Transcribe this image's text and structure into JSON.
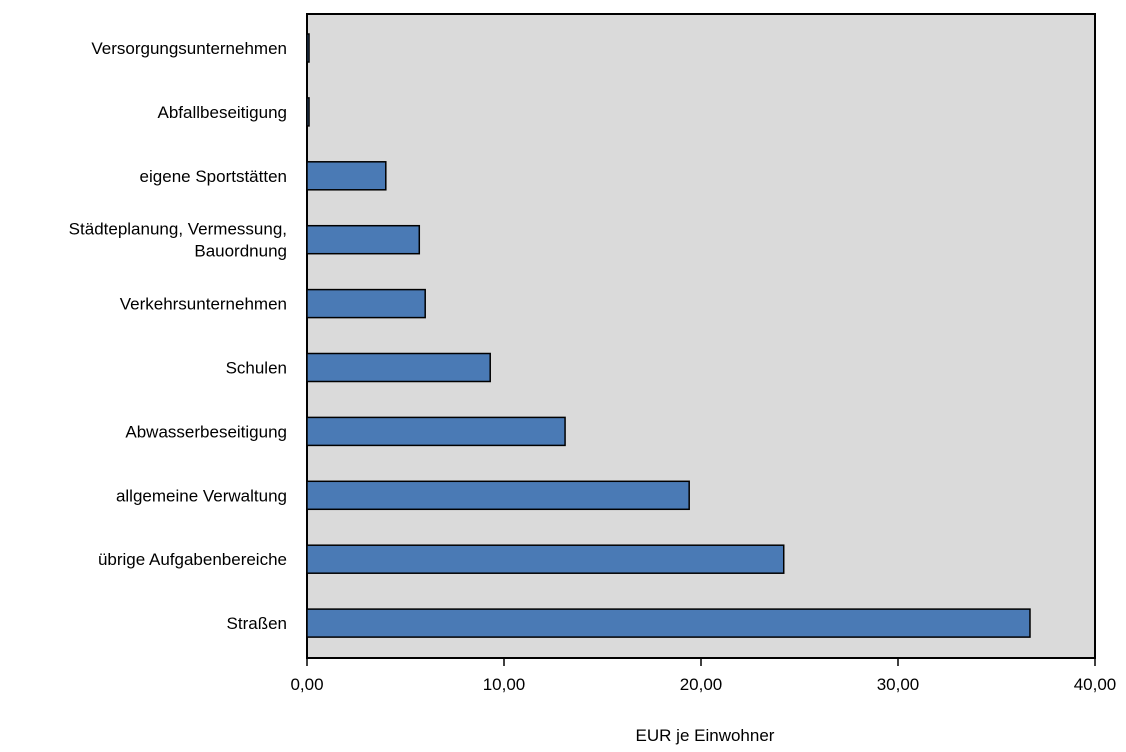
{
  "chart_data": {
    "type": "bar",
    "orientation": "horizontal",
    "categories": [
      "Versorgungsunternehmen",
      "Abfallbeseitigung",
      "eigene Sportstätten",
      "Städteplanung, Vermessung, Bauordnung",
      "Verkehrsunternehmen",
      "Schulen",
      "Abwasserbeseitigung",
      "allgemeine Verwaltung",
      "übrige Aufgabenbereiche",
      "Straßen"
    ],
    "category_lines": [
      [
        "Versorgungsunternehmen"
      ],
      [
        "Abfallbeseitigung"
      ],
      [
        "eigene Sportstätten"
      ],
      [
        "Städteplanung, Vermessung,",
        "Bauordnung"
      ],
      [
        "Verkehrsunternehmen"
      ],
      [
        "Schulen"
      ],
      [
        "Abwasserbeseitigung"
      ],
      [
        "allgemeine Verwaltung"
      ],
      [
        "übrige Aufgabenbereiche"
      ],
      [
        "Straßen"
      ]
    ],
    "values": [
      0.1,
      0.1,
      4.0,
      5.7,
      6.0,
      9.3,
      13.1,
      19.4,
      24.2,
      36.7
    ],
    "xlabel": "EUR je Einwohner",
    "ylabel": "",
    "title": "",
    "xlim": [
      0,
      40
    ],
    "xticks": [
      0,
      10,
      20,
      30,
      40
    ],
    "xtick_labels": [
      "0,00",
      "10,00",
      "20,00",
      "30,00",
      "40,00"
    ],
    "grid": false,
    "legend": "none",
    "colors": {
      "bar_fill": "#4A7AB5",
      "bar_stroke": "#000000",
      "plot_background": "#DADADA",
      "axis": "#000000"
    }
  }
}
